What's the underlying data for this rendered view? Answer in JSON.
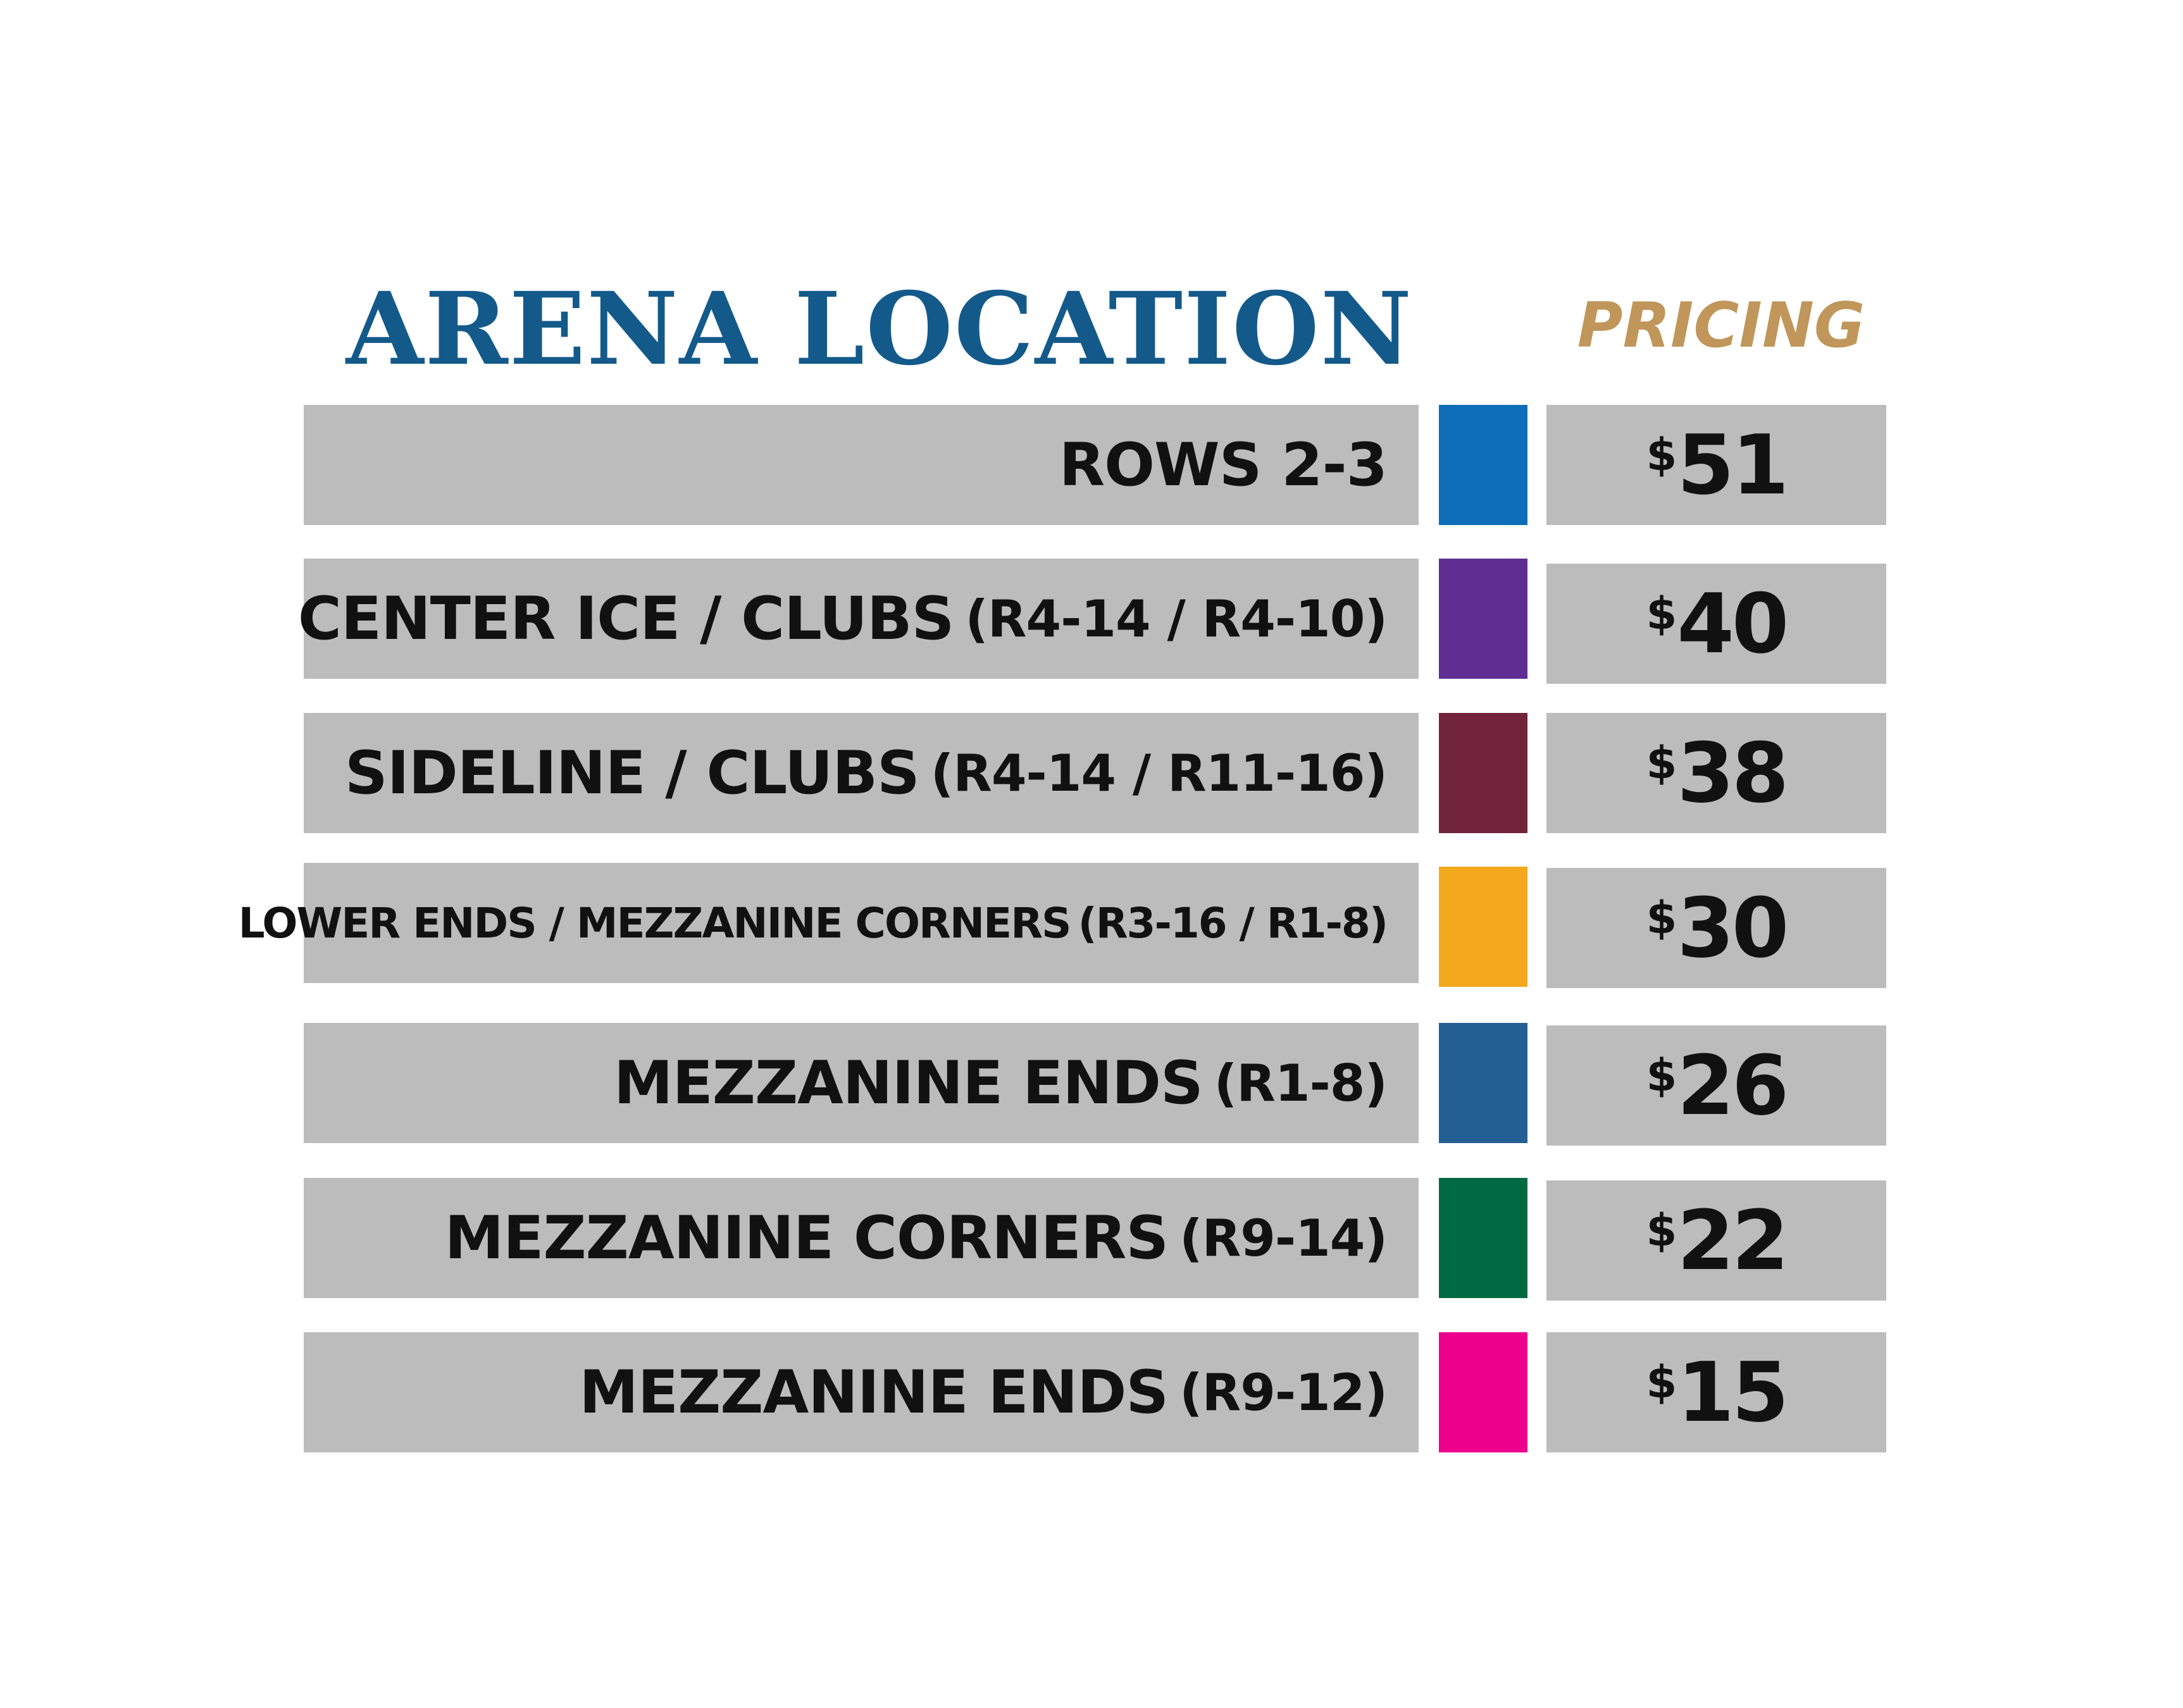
{
  "headers": {
    "location": "ARENA LOCATION",
    "pricing": "PRICING"
  },
  "colors": {
    "location_heading": "#135a8b",
    "pricing_heading": "#c0965a",
    "row_background": "#bcbcbc",
    "text": "#111111"
  },
  "rows": [
    {
      "location": "ROWS 2-3",
      "detail": "",
      "swatch": "#0e6db8",
      "currency": "$",
      "price": "51"
    },
    {
      "location": "CENTER ICE / CLUBS",
      "detail": "(R4-14 / R4-10)",
      "swatch": "#5f2d91",
      "currency": "$",
      "price": "40"
    },
    {
      "location": "SIDELINE / CLUBS",
      "detail": "(R4-14 / R11-16)",
      "swatch": "#72243c",
      "currency": "$",
      "price": "38"
    },
    {
      "location": "LOWER ENDS / MEZZANINE CORNERS",
      "detail": "(R3-16 / R1-8)",
      "swatch": "#f4a81e",
      "currency": "$",
      "price": "30"
    },
    {
      "location": "MEZZANINE ENDS",
      "detail": "(R1-8)",
      "swatch": "#235f93",
      "currency": "$",
      "price": "26"
    },
    {
      "location": "MEZZANINE CORNERS",
      "detail": "(R9-14)",
      "swatch": "#006a43",
      "currency": "$",
      "price": "22"
    },
    {
      "location": "MEZZANINE ENDS",
      "detail": "(R9-12)",
      "swatch": "#ec008c",
      "currency": "$",
      "price": "15"
    }
  ]
}
